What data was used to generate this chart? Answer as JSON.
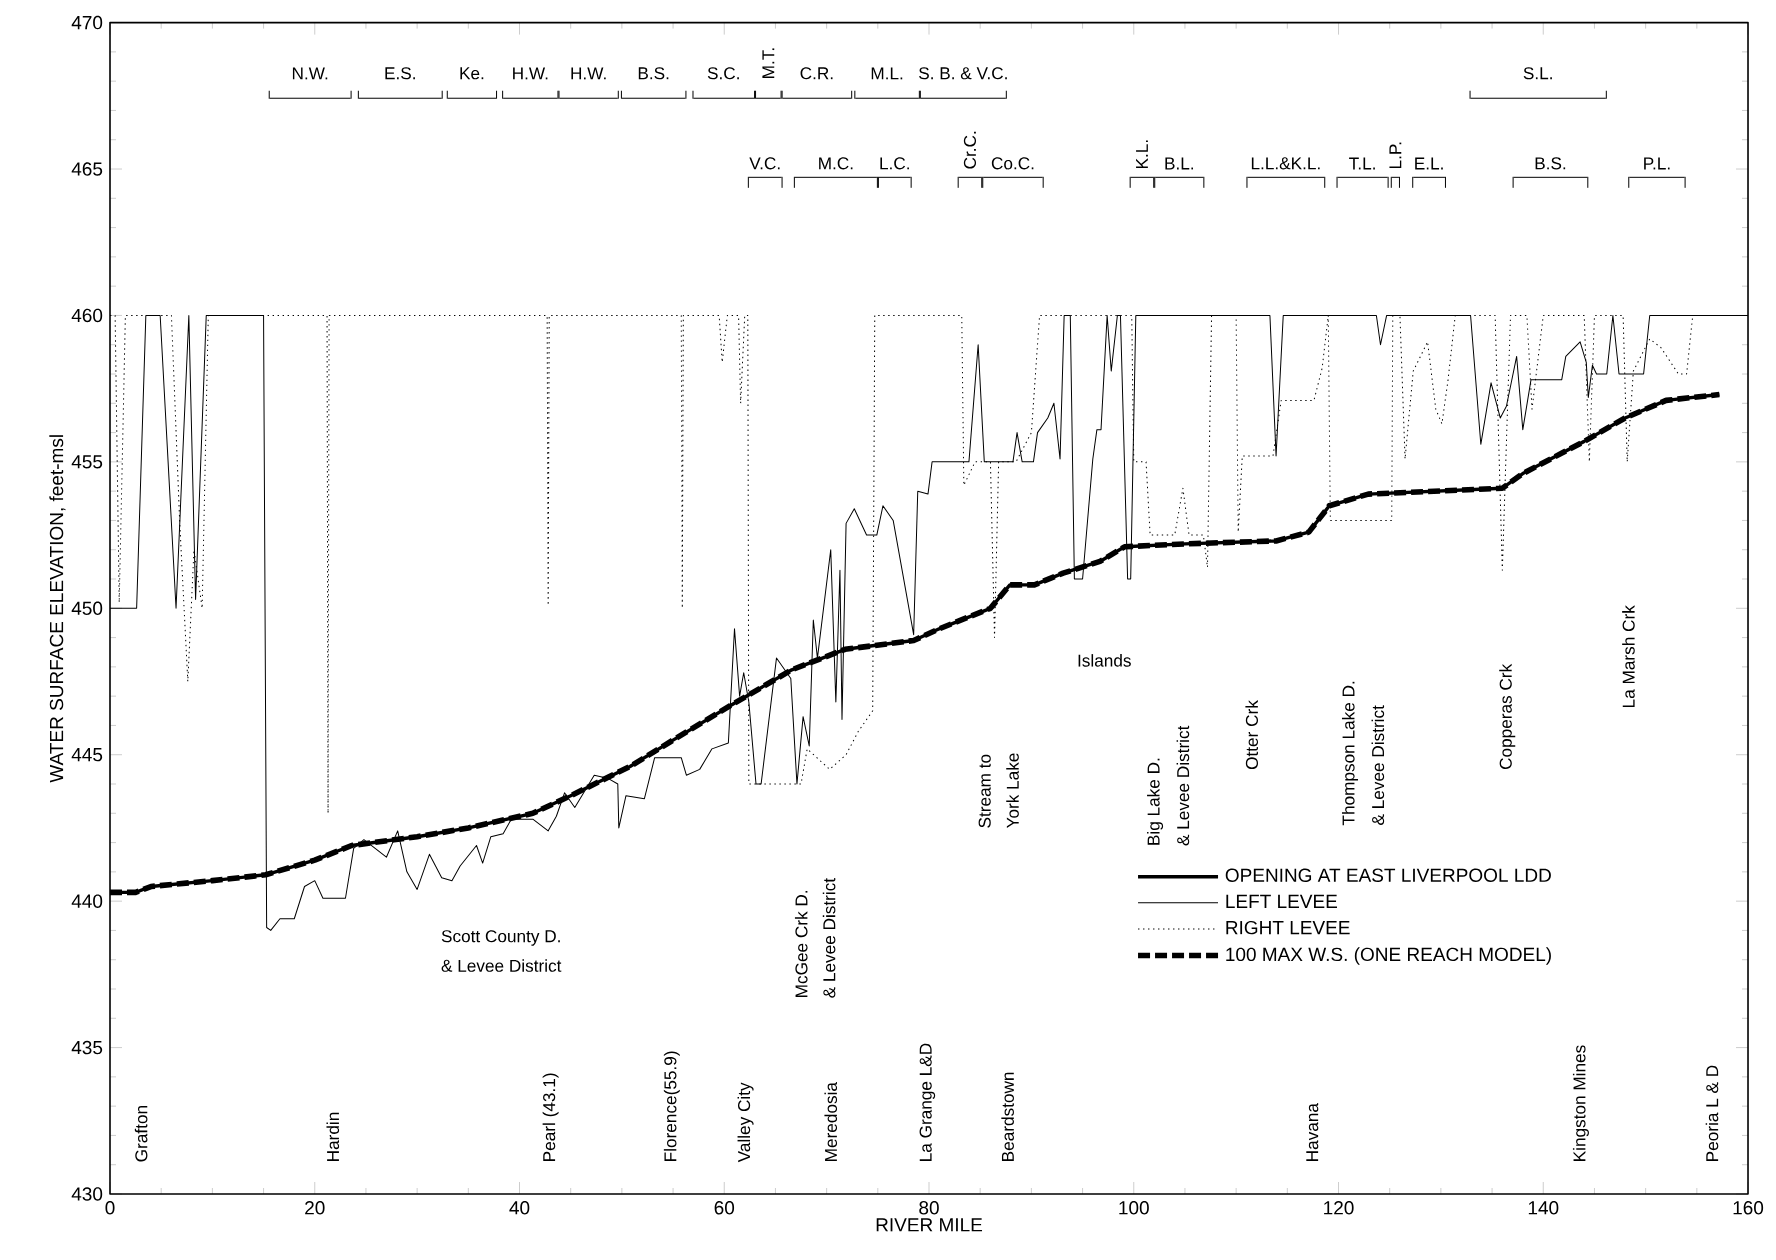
{
  "chart_data": {
    "type": "line",
    "xlabel": "RIVER MILE",
    "ylabel": "WATER SURFACE ELEVATION, feet-msl",
    "xlim": [
      0,
      160
    ],
    "ylim": [
      430,
      470
    ],
    "xticks": [
      0,
      20,
      40,
      60,
      80,
      100,
      120,
      140,
      160
    ],
    "yticks": [
      430,
      435,
      440,
      445,
      450,
      455,
      460,
      465,
      470
    ],
    "grid": false,
    "legend": "right",
    "series": [
      {
        "name": "OPENING AT EAST LIVERPOOL LDD",
        "color": "#000000",
        "line_style": "solid",
        "x": [
          0,
          2.5,
          4,
          10,
          15.2,
          20,
          23.6,
          30,
          35,
          41.3,
          45,
          50.8,
          55,
          60.7,
          66.6,
          71.8,
          78.5,
          81,
          86,
          87.9,
          90.3,
          93.1,
          96.7,
          99.1,
          105,
          113.9,
          117.1,
          119.1,
          122.9,
          136,
          138,
          144,
          148,
          152,
          157.2
        ],
        "values": [
          440.3,
          440.3,
          440.5,
          440.7,
          440.9,
          441.4,
          441.9,
          442.2,
          442.5,
          443.0,
          443.6,
          444.6,
          445.5,
          446.7,
          447.9,
          448.6,
          448.9,
          449.3,
          450.0,
          450.8,
          450.8,
          451.2,
          451.6,
          452.1,
          452.2,
          452.3,
          452.6,
          453.5,
          453.9,
          454.1,
          454.6,
          455.7,
          456.5,
          457.1,
          457.3
        ]
      },
      {
        "name": "LEFT LEVEE",
        "color": "#000000",
        "line_style": "solid",
        "x": [
          0,
          2.6,
          3.5,
          4.9,
          6.45,
          7.7,
          8.36,
          9.4,
          15.0,
          15.3,
          15.7,
          16.6,
          18.0,
          19.0,
          20.0,
          20.8,
          23.0,
          23.8,
          24.8,
          27.0,
          28.1,
          29.0,
          30.0,
          31.2,
          32.4,
          33.4,
          34.2,
          35.8,
          36.4,
          37.2,
          38.4,
          39.2,
          41.3,
          42.8,
          43.6,
          44.4,
          45.4,
          47.3,
          48.6,
          49.6,
          49.7,
          50.4,
          52.2,
          53.2,
          55.8,
          56.3,
          57.6,
          58.8,
          60.4,
          61.0,
          61.5,
          61.9,
          62.4,
          63.1,
          63.6,
          65.1,
          66.5,
          67.1,
          67.7,
          68.3,
          68.7,
          69.1,
          70.4,
          70.9,
          71.3,
          71.5,
          71.9,
          72.7,
          73.9,
          74.9,
          75.5,
          76.5,
          78.5,
          78.9,
          79.9,
          80.3,
          83.9,
          84.8,
          85.4,
          88.2,
          88.6,
          89.1,
          90.2,
          90.6,
          91.6,
          92.2,
          92.8,
          93.2,
          93.8,
          94.2,
          95.0,
          96.0,
          96.4,
          96.8,
          97.4,
          97.8,
          98.4,
          98.7,
          99.4,
          99.7,
          100.2,
          113.3,
          113.9,
          114.6,
          123.7,
          124.1,
          124.7,
          132.9,
          133.9,
          134.9,
          135.8,
          136.4,
          137.4,
          138.0,
          138.8,
          141.8,
          142.2,
          143.6,
          144.2,
          144.4,
          144.8,
          145.2,
          146.2,
          146.8,
          147.4,
          149.8,
          150.4,
          160
        ],
        "values": [
          450,
          450,
          460,
          460,
          450,
          460,
          450.3,
          460,
          460,
          439.1,
          439,
          439.4,
          439.4,
          440.5,
          440.7,
          440.1,
          440.1,
          441.8,
          442.1,
          441.5,
          442.4,
          441.0,
          440.4,
          441.6,
          440.8,
          440.7,
          441.2,
          441.9,
          441.3,
          442.2,
          442.3,
          442.8,
          442.8,
          442.4,
          442.9,
          443.7,
          443.2,
          444.3,
          444.2,
          444.0,
          442.5,
          443.6,
          443.5,
          444.9,
          444.9,
          444.3,
          444.5,
          445.2,
          445.4,
          449.3,
          447.0,
          447.8,
          446.8,
          444.0,
          444.0,
          448.3,
          447.6,
          444.0,
          446.3,
          445.3,
          449.6,
          448.3,
          452.0,
          446.8,
          451.3,
          446.2,
          452.9,
          453.4,
          452.5,
          452.5,
          453.5,
          453.0,
          449.1,
          454.0,
          453.9,
          455.0,
          455.0,
          459.0,
          455.0,
          455.0,
          456.0,
          455.0,
          455.0,
          456.0,
          456.5,
          457.0,
          455.1,
          460,
          460,
          451.0,
          451.0,
          455.1,
          456.1,
          456.1,
          460,
          458.1,
          460,
          460,
          451.0,
          451.0,
          460,
          460,
          455.2,
          460,
          460,
          459.0,
          460,
          460,
          455.6,
          457.7,
          456.5,
          456.9,
          458.6,
          456.1,
          457.8,
          457.8,
          458.6,
          459.1,
          458.4,
          457.2,
          458.3,
          458.0,
          458.0,
          460,
          458.0,
          458.0,
          460,
          460
        ]
      },
      {
        "name": "RIGHT LEVEE",
        "color": "#000000",
        "line_style": "dotted",
        "x": [
          0,
          0.5,
          0.9,
          1.5,
          6.0,
          6.8,
          7.6,
          8.2,
          9.0,
          9.6,
          21.2,
          21.3,
          21.4,
          42.7,
          42.8,
          42.9,
          55.8,
          55.9,
          56.0,
          59.5,
          59.8,
          60.3,
          61.4,
          61.6,
          62.0,
          62.3,
          62.4,
          67.5,
          68.1,
          70.3,
          71.9,
          73.1,
          74.5,
          74.7,
          83.2,
          83.4,
          84.5,
          86.0,
          86.4,
          86.8,
          88.5,
          90.0,
          90.8,
          99.8,
          100.0,
          101.2,
          101.6,
          104.0,
          104.8,
          105.4,
          106.8,
          107.2,
          107.6,
          110.0,
          110.2,
          110.6,
          113.6,
          114.4,
          117.6,
          118.4,
          119.0,
          119.2,
          125.2,
          125.3,
          126.0,
          126.5,
          127.3,
          128.7,
          129.5,
          130.1,
          130.7,
          131.4,
          135.3,
          136.0,
          136.8,
          138.4,
          138.9,
          140.0,
          144.0,
          144.5,
          145.0,
          147.8,
          148.2,
          148.8,
          150.4,
          151.5,
          153.2,
          154.0,
          154.6,
          160
        ],
        "values": [
          460,
          460,
          450.2,
          460,
          460,
          453.0,
          447.5,
          452.0,
          450.0,
          460,
          460,
          443.0,
          460,
          460,
          450.1,
          460,
          460,
          450.0,
          460,
          460,
          458.4,
          460,
          460,
          457.0,
          460,
          460,
          444.0,
          444.0,
          445.2,
          444.5,
          445.0,
          445.8,
          446.5,
          460,
          460,
          454.2,
          455.0,
          455.0,
          449.0,
          455.0,
          455.0,
          456.0,
          460,
          460,
          455.0,
          455.0,
          452.5,
          452.5,
          454.1,
          452.5,
          452.5,
          451.4,
          460,
          460,
          452.6,
          455.2,
          455.2,
          457.1,
          457.1,
          458.2,
          460,
          453.0,
          453.0,
          460,
          460,
          455.1,
          458.1,
          459.1,
          456.8,
          456.3,
          457.8,
          460,
          460,
          451.3,
          460,
          460,
          456.8,
          460,
          460,
          455.0,
          460,
          460,
          455.0,
          458.1,
          459.2,
          458.9,
          458.0,
          458.0,
          460,
          460
        ]
      },
      {
        "name": "100 MAX W.S. (ONE REACH MODEL)",
        "color": "#000000",
        "line_style": "dashed",
        "x": [
          0,
          2.5,
          4,
          10,
          15.2,
          20,
          23.6,
          30,
          35,
          41.3,
          45,
          50.8,
          55,
          60.7,
          66.6,
          71.8,
          78.5,
          81,
          86,
          87.9,
          90.3,
          93.1,
          96.7,
          99.1,
          105,
          113.9,
          117.1,
          119.1,
          122.9,
          136,
          138,
          144,
          148,
          152,
          157.2
        ],
        "values": [
          440.3,
          440.3,
          440.5,
          440.7,
          440.9,
          441.4,
          441.9,
          442.2,
          442.5,
          443.0,
          443.6,
          444.6,
          445.5,
          446.7,
          447.9,
          448.6,
          448.9,
          449.3,
          450.0,
          450.8,
          450.8,
          451.2,
          451.6,
          452.1,
          452.2,
          452.3,
          452.6,
          453.5,
          453.9,
          454.1,
          454.6,
          455.7,
          456.5,
          457.1,
          457.3
        ]
      }
    ],
    "annotations": [
      "N.W.",
      "E.S.",
      "Ke.",
      "H.W.",
      "H.W.",
      "B.S.",
      "S.C.",
      "M.T.",
      "C.R.",
      "M.L.",
      "S. B. & V.C.",
      "S.L.",
      "V.C.",
      "M.C.",
      "L.C.",
      "Cr.C.",
      "Co.C.",
      "K.L.",
      "B.L.",
      "L.L.&K.L.",
      "T.L.",
      "L.P.",
      "E.L.",
      "B.S.",
      "P.L.",
      "Grafton",
      "Hardin",
      "Pearl (43.1)",
      "Florence(55.9)",
      "Valley City",
      "Meredosia",
      "La Grange L&D",
      "Beardstown",
      "Havana",
      "Kingston Mines",
      "Peoria L & D",
      "McGee Crk D.",
      "& Levee District",
      "Stream to",
      "York Lake",
      "Big Lake D.",
      "& Levee District",
      "Otter Crk",
      "Thompson Lake D.",
      "& Levee District",
      "Copperas Crk",
      "La Marsh Crk",
      "Scott County D.",
      "& Levee District",
      "Islands"
    ]
  }
}
